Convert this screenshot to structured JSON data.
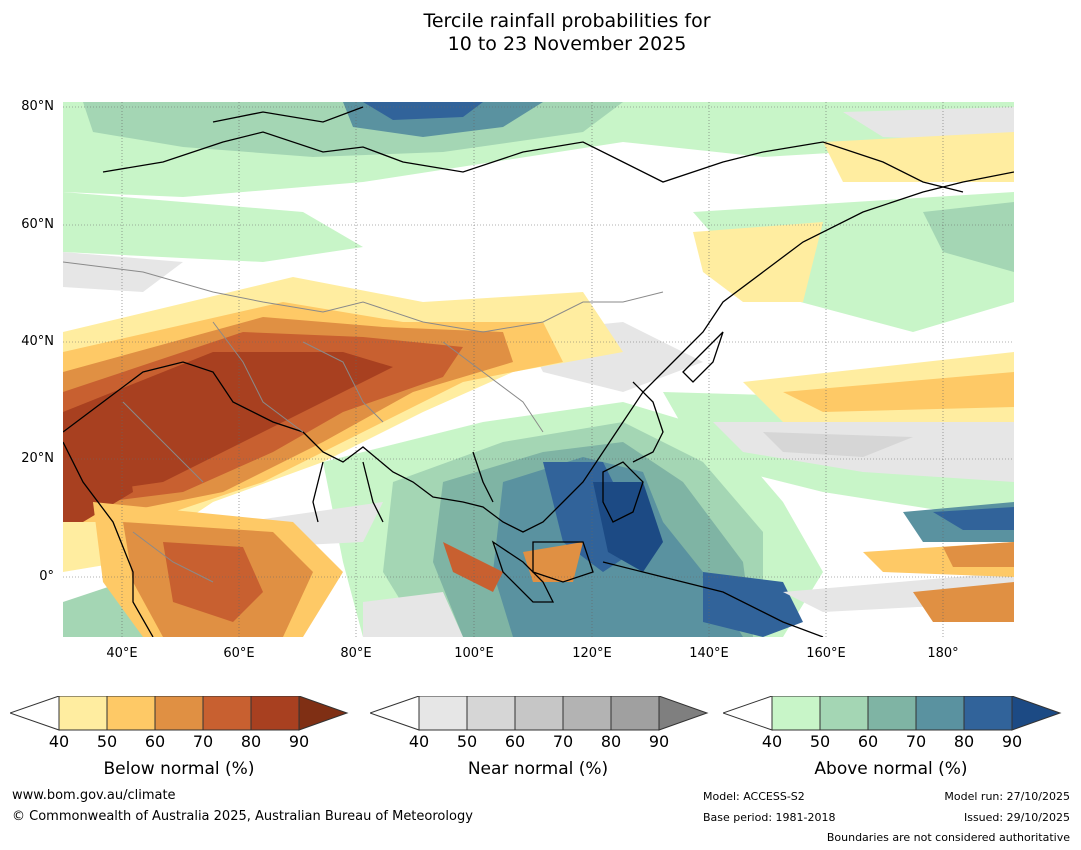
{
  "title": {
    "line1": "Tercile rainfall probabilities for",
    "line2": "10 to 23 November 2025"
  },
  "map": {
    "lat_labels": [
      "80°N",
      "60°N",
      "40°N",
      "20°N",
      "0°"
    ],
    "lon_labels": [
      "40°E",
      "60°E",
      "80°E",
      "100°E",
      "120°E",
      "140°E",
      "160°E",
      "180°"
    ]
  },
  "colorbars": [
    {
      "name": "below",
      "title": "Below normal (%)",
      "ticks": [
        "40",
        "50",
        "60",
        "70",
        "80",
        "90"
      ],
      "colors": [
        "#ffeda0",
        "#fec966",
        "#e09043",
        "#c86030",
        "#a84020",
        "#7f2f14"
      ]
    },
    {
      "name": "near",
      "title": "Near normal (%)",
      "ticks": [
        "40",
        "50",
        "60",
        "70",
        "80",
        "90"
      ],
      "colors": [
        "#e6e6e6",
        "#d6d6d6",
        "#c6c6c6",
        "#b3b3b3",
        "#a0a0a0",
        "#7f7f7f"
      ]
    },
    {
      "name": "above",
      "title": "Above normal (%)",
      "ticks": [
        "40",
        "50",
        "60",
        "70",
        "80",
        "90"
      ],
      "colors": [
        "#c8f5c8",
        "#a4d6b4",
        "#7fb4a4",
        "#5a92a0",
        "#31639a",
        "#1c4a84"
      ]
    }
  ],
  "footer": {
    "website": "www.bom.gov.au/climate",
    "copyright": "© Commonwealth of Australia 2025, Australian Bureau of Meteorology",
    "model": "Model: ACCESS-S2",
    "base_period": "Base period: 1981-2018",
    "model_run": "Model run: 27/10/2025",
    "issued": "Issued: 29/10/2025",
    "disclaimer": "Boundaries are not considered authoritative"
  }
}
